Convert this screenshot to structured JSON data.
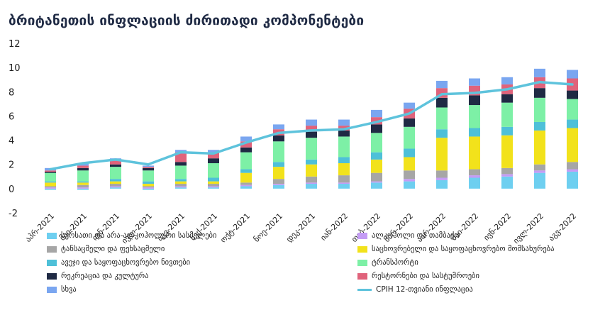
{
  "title": "ბრიტანეთის ინფლაციის ძირითადი კომპონენტები",
  "chart_data": {
    "type": "bar",
    "stacked": true,
    "categories": [
      "აპრ-2021",
      "მაი-2021",
      "ივნ-2021",
      "ივლ-2021",
      "აგვ-2021",
      "სექ-2021",
      "ოქტ-2021",
      "ნოე-2021",
      "დეკ-2021",
      "იან-2022",
      "თებ-2022",
      "მარ-2022",
      "აპრ-2022",
      "მაი-2022",
      "ივნ-2022",
      "ივლ-2022",
      "აგვ-2022"
    ],
    "ylim": [
      -2,
      12
    ],
    "yticks": [
      -2,
      0,
      2,
      4,
      6,
      8,
      10,
      12
    ],
    "series": [
      {
        "name": "სურსათი და არა-ალკოჰოლური სასმელები",
        "color": "#6ecff0",
        "values": [
          -0.1,
          -0.1,
          0.1,
          -0.1,
          0.1,
          0.1,
          0.2,
          0.3,
          0.4,
          0.4,
          0.5,
          0.6,
          0.7,
          0.9,
          1.0,
          1.3,
          1.4
        ]
      },
      {
        "name": "ალკოჰოლი და თამბაქო",
        "color": "#c49cf5",
        "values": [
          0.1,
          0.1,
          0.1,
          0.1,
          0.1,
          0.1,
          0.1,
          0.1,
          0.1,
          0.1,
          0.1,
          0.2,
          0.2,
          0.2,
          0.2,
          0.2,
          0.2
        ]
      },
      {
        "name": "ტანსაცმელი და ფეხსაცმელი",
        "color": "#a6a6a6",
        "values": [
          0.1,
          0.2,
          0.2,
          0.1,
          0.2,
          0.2,
          0.2,
          0.4,
          0.5,
          0.6,
          0.7,
          0.7,
          0.6,
          0.5,
          0.5,
          0.5,
          0.6
        ]
      },
      {
        "name": "საცხოვრებელი და საყოფაცხოვრებო მომსახურება",
        "color": "#f2e21b",
        "values": [
          0.3,
          0.2,
          0.2,
          0.2,
          0.2,
          0.2,
          0.8,
          1.0,
          1.0,
          1.0,
          1.1,
          1.1,
          2.7,
          2.7,
          2.7,
          2.8,
          2.8
        ]
      },
      {
        "name": "ავეჯი და საყოფაცხოვრებო ნივთები",
        "color": "#4ec0d8",
        "values": [
          0.1,
          0.1,
          0.2,
          0.2,
          0.2,
          0.3,
          0.3,
          0.4,
          0.4,
          0.5,
          0.6,
          0.7,
          0.7,
          0.7,
          0.7,
          0.7,
          0.7
        ]
      },
      {
        "name": "ტრანსპორტი",
        "color": "#7df0a6",
        "values": [
          0.7,
          0.9,
          1.0,
          0.9,
          1.1,
          1.2,
          1.4,
          1.7,
          1.8,
          1.7,
          1.6,
          1.8,
          1.8,
          1.9,
          2.0,
          2.0,
          1.7
        ]
      },
      {
        "name": "რეკრეაცია და კულტურა",
        "color": "#1f2a44",
        "values": [
          0.1,
          0.2,
          0.2,
          0.2,
          0.3,
          0.4,
          0.4,
          0.5,
          0.5,
          0.5,
          0.7,
          0.7,
          0.8,
          0.8,
          0.7,
          0.8,
          0.7
        ]
      },
      {
        "name": "რესტორნები და სასტუმროები",
        "color": "#e0637b",
        "values": [
          0.1,
          0.2,
          0.3,
          0.1,
          0.8,
          0.5,
          0.5,
          0.5,
          0.5,
          0.4,
          0.6,
          0.8,
          0.8,
          0.8,
          0.8,
          0.9,
          1.0
        ]
      },
      {
        "name": "სხვა",
        "color": "#7aa6f0",
        "values": [
          0.2,
          0.2,
          0.2,
          0.1,
          0.2,
          0.2,
          0.4,
          0.4,
          0.5,
          0.5,
          0.6,
          0.5,
          0.6,
          0.6,
          0.6,
          0.7,
          0.7
        ]
      }
    ],
    "line": {
      "name": "CPIH 12-თვიანი ინფლაცია",
      "color": "#5ec3dc",
      "values": [
        1.6,
        2.1,
        2.4,
        2.0,
        3.0,
        2.9,
        3.8,
        4.6,
        4.8,
        4.9,
        5.5,
        6.2,
        7.8,
        7.9,
        8.2,
        8.8,
        8.6
      ]
    },
    "legend_position": "bottom"
  },
  "legend_layout": [
    {
      "ref": "series.0"
    },
    {
      "ref": "series.1"
    },
    {
      "ref": "series.2"
    },
    {
      "ref": "series.3"
    },
    {
      "ref": "series.4"
    },
    {
      "ref": "series.5"
    },
    {
      "ref": "series.6"
    },
    {
      "ref": "series.7"
    },
    {
      "ref": "series.8"
    },
    {
      "ref": "line"
    }
  ]
}
